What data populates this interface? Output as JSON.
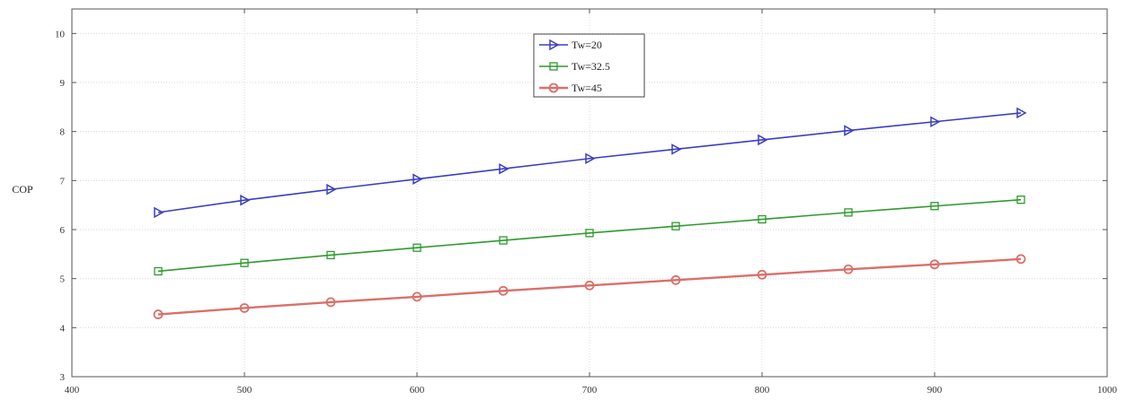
{
  "chart_data": {
    "type": "line",
    "title": "",
    "xlabel": "",
    "ylabel": "COP",
    "xlim": [
      400,
      1000
    ],
    "ylim": [
      3,
      10.5
    ],
    "xticks": [
      400,
      500,
      600,
      700,
      800,
      900,
      1000
    ],
    "yticks": [
      3,
      4,
      5,
      6,
      7,
      8,
      9,
      10
    ],
    "grid": true,
    "legend_position": "top-center",
    "x": [
      450,
      500,
      550,
      600,
      650,
      700,
      750,
      800,
      850,
      900,
      950
    ],
    "series": [
      {
        "name": "Tw=20",
        "marker": "triangle-right",
        "color": "#3a3fc0",
        "values": [
          6.35,
          6.6,
          6.82,
          7.03,
          7.24,
          7.45,
          7.64,
          7.83,
          8.02,
          8.2,
          8.38
        ]
      },
      {
        "name": "Tw=32.5",
        "marker": "square",
        "color": "#2e9a2e",
        "values": [
          5.15,
          5.32,
          5.48,
          5.63,
          5.78,
          5.93,
          6.07,
          6.21,
          6.35,
          6.48,
          6.61
        ]
      },
      {
        "name": "Tw=45",
        "marker": "circle",
        "color": "#d9706a",
        "values": [
          4.27,
          4.4,
          4.52,
          4.63,
          4.75,
          4.86,
          4.97,
          5.08,
          5.19,
          5.29,
          5.4
        ]
      }
    ]
  }
}
